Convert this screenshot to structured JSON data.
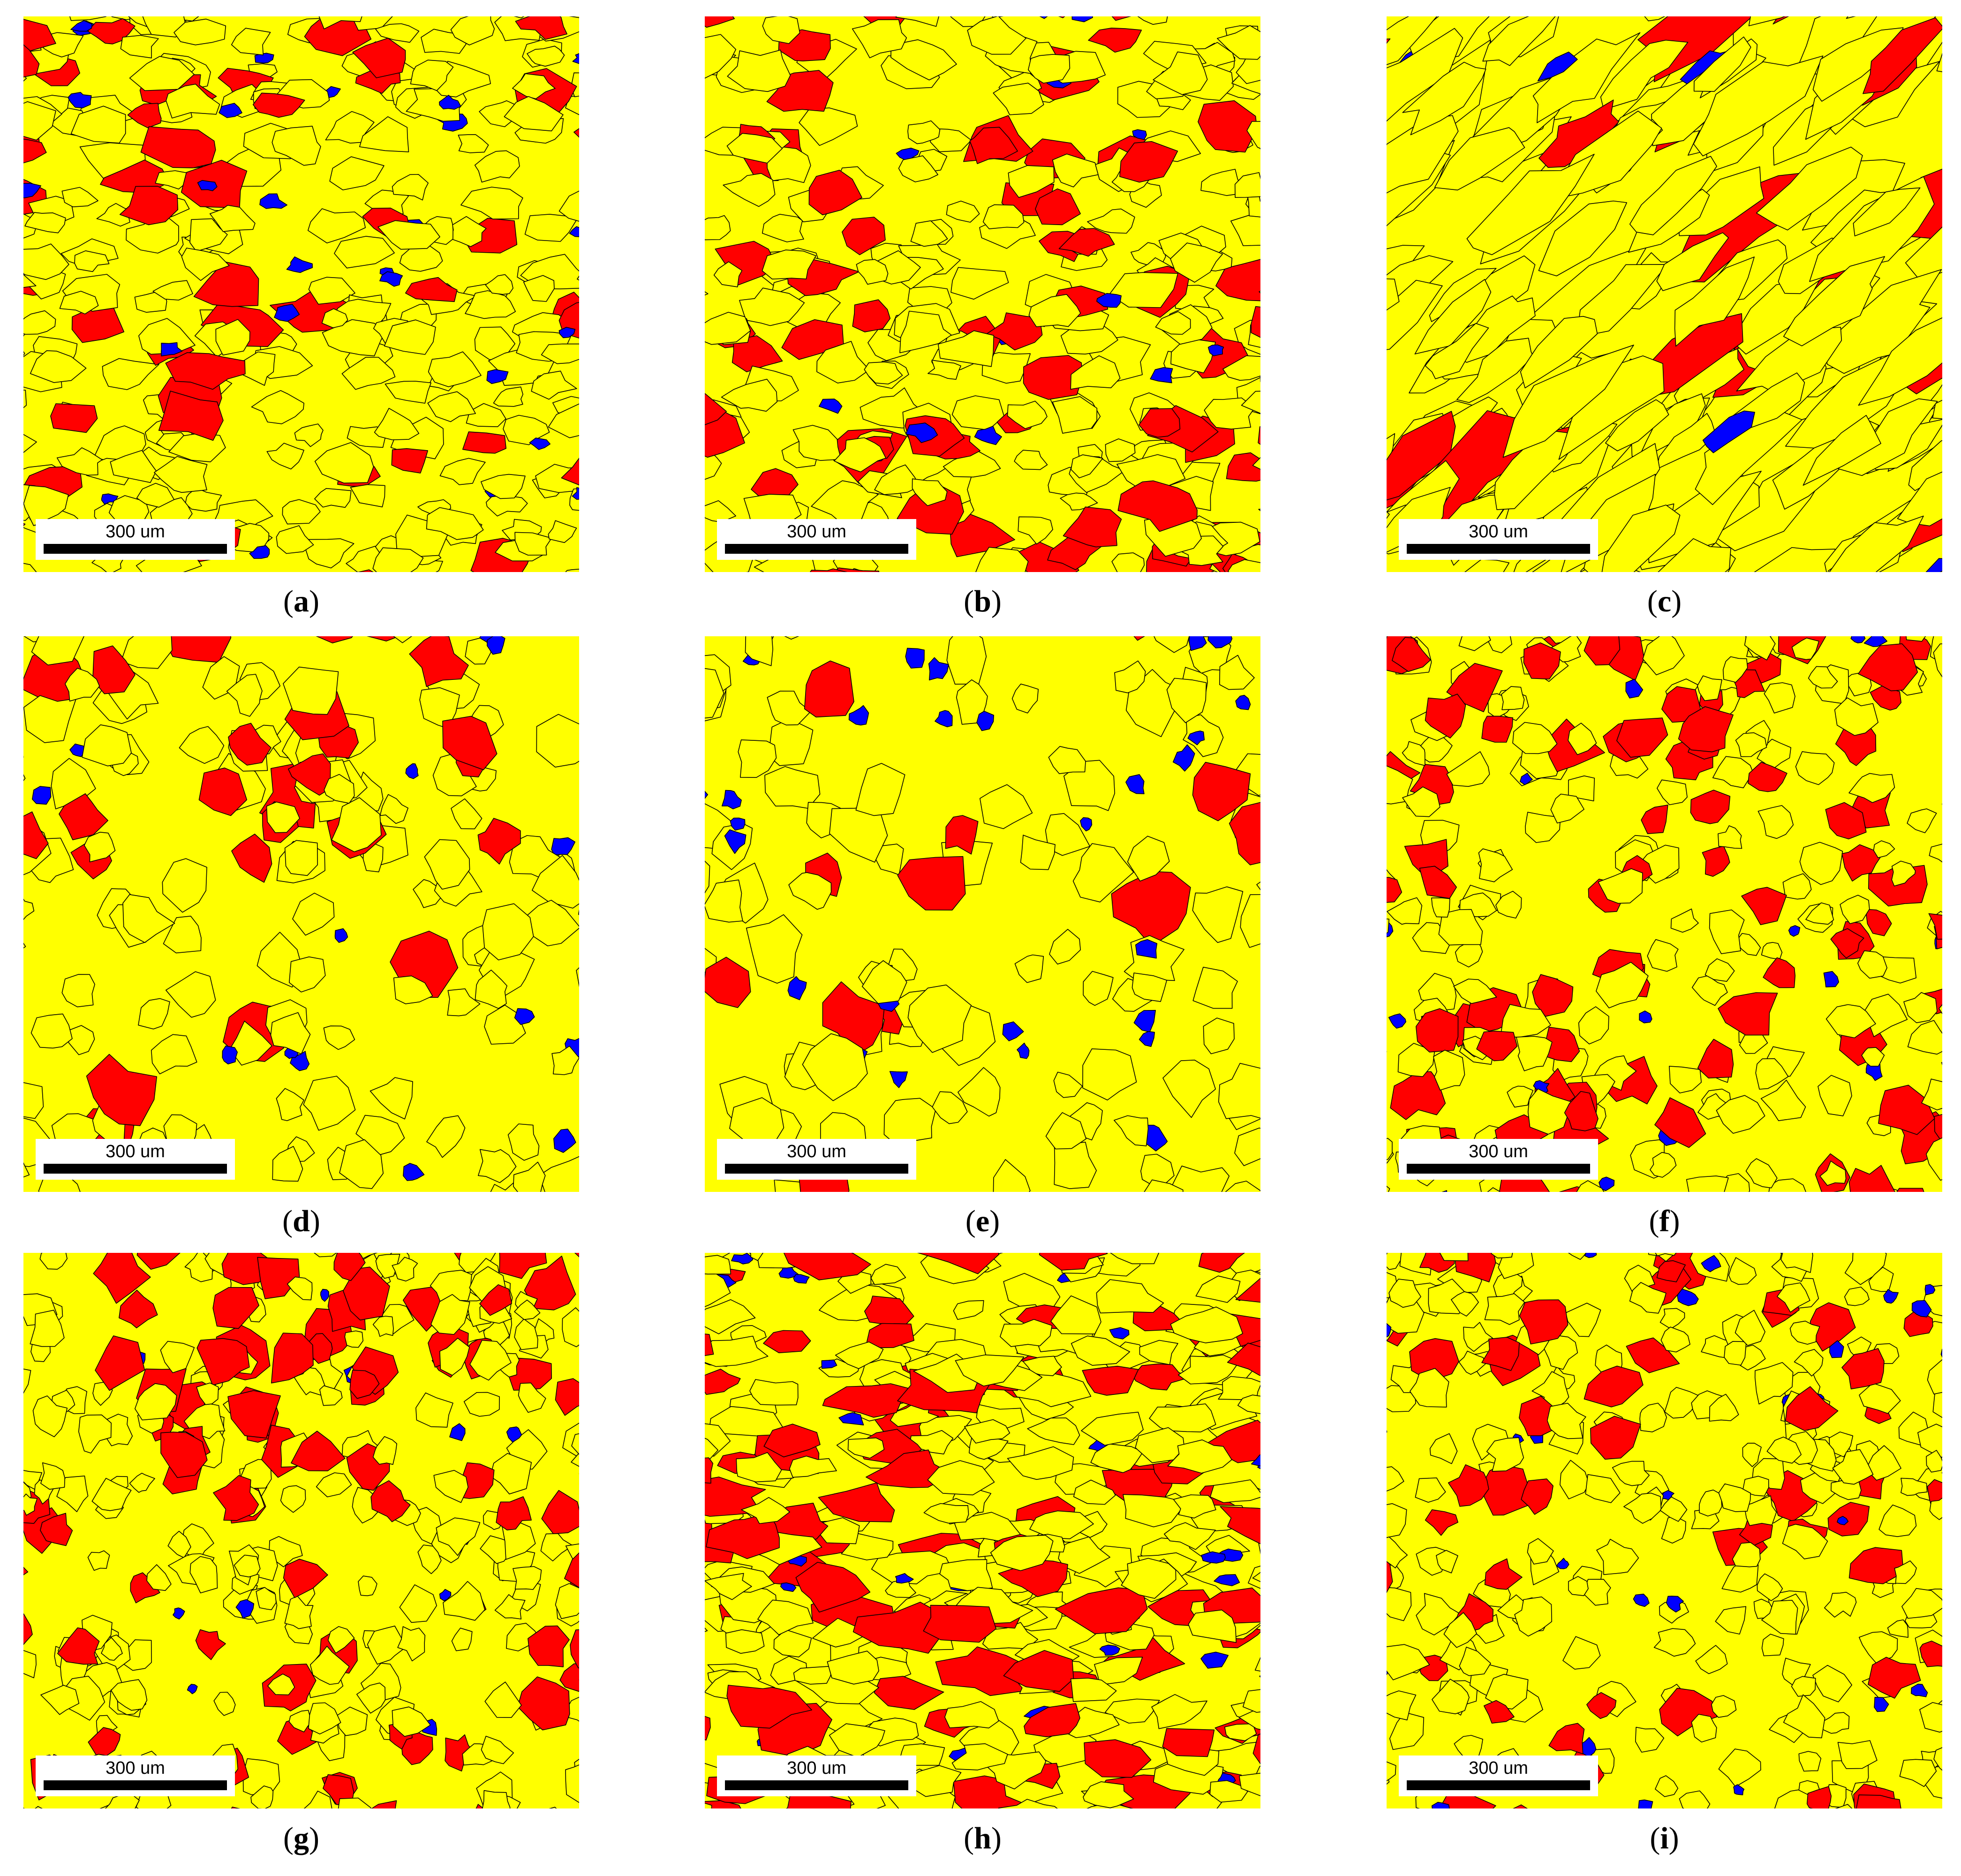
{
  "figure": {
    "colors": {
      "matrix": "#ffff00",
      "phase_red": "#ff0000",
      "phase_blue": "#0000ff",
      "boundaries": "#000000"
    },
    "panels": [
      {
        "letter": "a",
        "scale_label": "300 um"
      },
      {
        "letter": "b",
        "scale_label": "300 um"
      },
      {
        "letter": "c",
        "scale_label": "300 um"
      },
      {
        "letter": "d",
        "scale_label": "300 um"
      },
      {
        "letter": "e",
        "scale_label": "300 um"
      },
      {
        "letter": "f",
        "scale_label": "300 um"
      },
      {
        "letter": "g",
        "scale_label": "300 um"
      },
      {
        "letter": "h",
        "scale_label": "300 um"
      },
      {
        "letter": "i",
        "scale_label": "300 um"
      }
    ]
  }
}
